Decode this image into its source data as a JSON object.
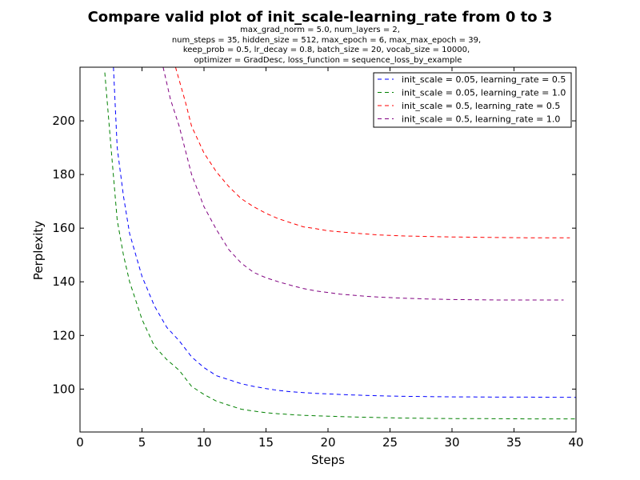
{
  "chart_data": {
    "type": "line",
    "title": "Compare valid plot of init_scale-learning_rate from 0 to 3",
    "subtitle_lines": [
      "max_grad_norm = 5.0, num_layers = 2,",
      "num_steps = 35, hidden_size = 512, max_epoch = 6, max_max_epoch = 39,",
      "keep_prob = 0.5, lr_decay = 0.8, batch_size = 20, vocab_size = 10000,",
      "optimizer = GradDesc, loss_function = sequence_loss_by_example"
    ],
    "xlabel": "Steps",
    "ylabel": "Perplexity",
    "xlim": [
      0,
      40
    ],
    "ylim": [
      84,
      220
    ],
    "xticks": [
      0,
      5,
      10,
      15,
      20,
      25,
      30,
      35,
      40
    ],
    "yticks": [
      100,
      120,
      140,
      160,
      180,
      200
    ],
    "grid": false,
    "legend_position": "top-right",
    "series": [
      {
        "name": "init_scale = 0.05, learning_rate = 0.5",
        "color": "#0000ff",
        "style": "dashed",
        "points": [
          [
            2.7,
            220
          ],
          [
            3,
            190
          ],
          [
            3.5,
            172
          ],
          [
            4,
            158
          ],
          [
            5,
            142
          ],
          [
            6,
            131
          ],
          [
            7,
            123
          ],
          [
            8,
            118
          ],
          [
            9,
            112
          ],
          [
            10,
            108
          ],
          [
            11,
            105
          ],
          [
            12,
            103.5
          ],
          [
            13,
            102
          ],
          [
            14,
            101
          ],
          [
            15,
            100.2
          ],
          [
            16,
            99.5
          ],
          [
            17,
            99
          ],
          [
            18,
            98.7
          ],
          [
            19,
            98.4
          ],
          [
            20,
            98.2
          ],
          [
            22,
            97.8
          ],
          [
            24,
            97.5
          ],
          [
            26,
            97.3
          ],
          [
            28,
            97.2
          ],
          [
            30,
            97.1
          ],
          [
            32,
            97.05
          ],
          [
            34,
            97
          ],
          [
            36,
            97
          ],
          [
            38,
            96.95
          ],
          [
            40,
            96.9
          ]
        ]
      },
      {
        "name": "init_scale = 0.05, learning_rate = 1.0",
        "color": "#008000",
        "style": "dashed",
        "points": [
          [
            2,
            218
          ],
          [
            2.5,
            190
          ],
          [
            3,
            163
          ],
          [
            3.5,
            150
          ],
          [
            4,
            140
          ],
          [
            5,
            126
          ],
          [
            6,
            116
          ],
          [
            7,
            111
          ],
          [
            8,
            107
          ],
          [
            9,
            101
          ],
          [
            10,
            98
          ],
          [
            11,
            95.5
          ],
          [
            12,
            94
          ],
          [
            13,
            92.5
          ],
          [
            14,
            91.8
          ],
          [
            15,
            91.2
          ],
          [
            16,
            90.8
          ],
          [
            17,
            90.5
          ],
          [
            18,
            90.2
          ],
          [
            20,
            89.9
          ],
          [
            22,
            89.6
          ],
          [
            24,
            89.4
          ],
          [
            26,
            89.2
          ],
          [
            28,
            89.1
          ],
          [
            30,
            89
          ],
          [
            32,
            89
          ],
          [
            34,
            88.95
          ],
          [
            36,
            88.9
          ],
          [
            38,
            88.9
          ],
          [
            40,
            88.9
          ]
        ]
      },
      {
        "name": "init_scale = 0.5, learning_rate = 0.5",
        "color": "#ff0000",
        "style": "dashed",
        "points": [
          [
            7.7,
            220
          ],
          [
            8.5,
            207
          ],
          [
            9,
            198
          ],
          [
            10,
            188
          ],
          [
            11,
            181
          ],
          [
            12,
            175.5
          ],
          [
            13,
            171
          ],
          [
            14,
            168
          ],
          [
            15,
            165.5
          ],
          [
            16,
            163.5
          ],
          [
            17,
            162
          ],
          [
            18,
            160.5
          ],
          [
            19,
            159.8
          ],
          [
            20,
            159
          ],
          [
            22,
            158.2
          ],
          [
            24,
            157.5
          ],
          [
            26,
            157.1
          ],
          [
            28,
            156.9
          ],
          [
            30,
            156.7
          ],
          [
            32,
            156.6
          ],
          [
            34,
            156.5
          ],
          [
            36,
            156.4
          ],
          [
            38,
            156.4
          ],
          [
            39.5,
            156.4
          ]
        ]
      },
      {
        "name": "init_scale = 0.5, learning_rate = 1.0",
        "color": "#800080",
        "style": "dashed",
        "points": [
          [
            6.7,
            220
          ],
          [
            7.3,
            208
          ],
          [
            8,
            198
          ],
          [
            9,
            180
          ],
          [
            10,
            168
          ],
          [
            11,
            159.5
          ],
          [
            12,
            152
          ],
          [
            13,
            147
          ],
          [
            14,
            143.5
          ],
          [
            15,
            141.5
          ],
          [
            16,
            140
          ],
          [
            17,
            138.7
          ],
          [
            18,
            137.5
          ],
          [
            19,
            136.6
          ],
          [
            20,
            136
          ],
          [
            21,
            135.4
          ],
          [
            22,
            135
          ],
          [
            23,
            134.6
          ],
          [
            24,
            134.3
          ],
          [
            26,
            133.9
          ],
          [
            28,
            133.6
          ],
          [
            30,
            133.4
          ],
          [
            32,
            133.3
          ],
          [
            34,
            133.2
          ],
          [
            36,
            133.2
          ],
          [
            38,
            133.2
          ],
          [
            39,
            133.2
          ]
        ]
      }
    ]
  }
}
